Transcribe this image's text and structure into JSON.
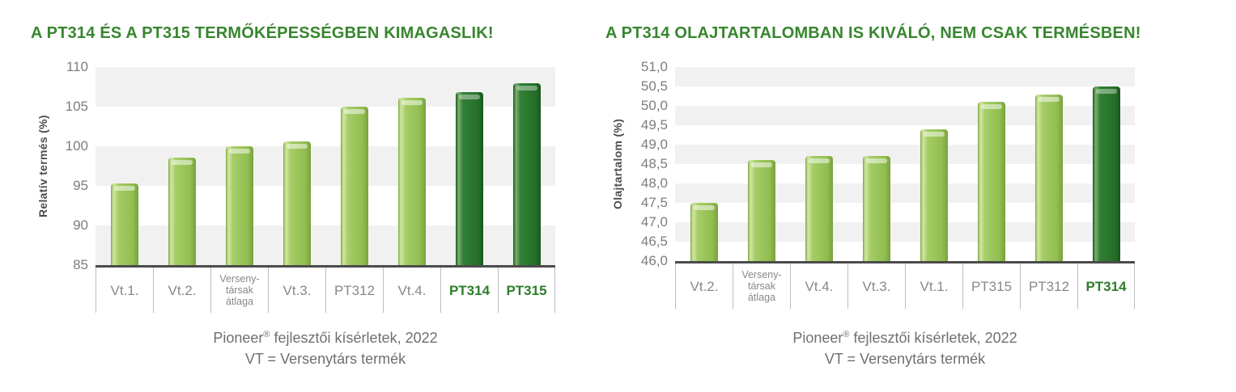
{
  "page": {
    "background": "#ffffff"
  },
  "colors": {
    "title_green": "#37862e",
    "bar_light_green": "#9ac55a",
    "bar_dark_green": "#2b772f",
    "highlight_label_green": "#2f7d2a",
    "band_gray": "#f1f1f1",
    "axis_line": "#4b4b4b",
    "tick_text": "#7d7d7d",
    "category_text": "#888888",
    "caption_text": "#6f6f6f",
    "separator": "#bdbdbd",
    "y_title_text": "#4e4e4e"
  },
  "charts": [
    {
      "title": "A PT314 ÉS A PT315 TERMŐKÉPESSÉGBEN KIMAGASLIK!",
      "caption": {
        "brand": "Pioneer",
        "reg_mark": "®",
        "line1_rest": " fejlesztői kísérletek, 2022",
        "line2": "VT = Versenytárs termék"
      },
      "chart_data": {
        "type": "bar",
        "title": "A PT314 ÉS A PT315 TERMŐKÉPESSÉGBEN KIMAGASLIK!",
        "xlabel": "",
        "ylabel": "Relatív termés (%)",
        "ylim": [
          85,
          110
        ],
        "ytick_step": 5,
        "ytick_labels": [
          "110",
          "105",
          "100",
          "95",
          "90",
          "85"
        ],
        "grid": "horizontal-bands",
        "legend": "none",
        "categories": [
          "Vt.1.",
          "Vt.2.",
          "Versenytársak átlaga",
          "Vt.3.",
          "PT312",
          "Vt.4.",
          "PT314",
          "PT315"
        ],
        "category_lines": [
          [
            "Vt.1."
          ],
          [
            "Vt.2."
          ],
          [
            "Verseny-",
            "társak",
            "átlaga"
          ],
          [
            "Vt.3."
          ],
          [
            "PT312"
          ],
          [
            "Vt.4."
          ],
          [
            "PT314"
          ],
          [
            "PT315"
          ]
        ],
        "values": [
          95.3,
          98.6,
          100.0,
          100.6,
          105.0,
          106.1,
          106.8,
          108.0
        ],
        "highlighted": [
          false,
          false,
          false,
          false,
          false,
          false,
          true,
          true
        ]
      }
    },
    {
      "title": "A PT314 OLAJTARTALOMBAN IS KIVÁLÓ, NEM CSAK TERMÉSBEN!",
      "caption": {
        "brand": "Pioneer",
        "reg_mark": "®",
        "line1_rest": " fejlesztői kísérletek, 2022",
        "line2": "VT = Versenytárs termék"
      },
      "chart_data": {
        "type": "bar",
        "title": "A PT314 OLAJTARTALOMBAN IS KIVÁLÓ, NEM CSAK TERMÉSBEN!",
        "xlabel": "",
        "ylabel": "Olajtartalom (%)",
        "ylim": [
          46,
          51
        ],
        "ytick_step": 0.5,
        "ytick_labels": [
          "51,0",
          "50,5",
          "50,0",
          "49,5",
          "49,0",
          "48,5",
          "48,0",
          "47,5",
          "47,0",
          "46,5",
          "46,0"
        ],
        "grid": "horizontal-bands",
        "legend": "none",
        "categories": [
          "Vt.2.",
          "Versenytársak átlaga",
          "Vt.4.",
          "Vt.3.",
          "Vt.1.",
          "PT315",
          "PT312",
          "PT314"
        ],
        "category_lines": [
          [
            "Vt.2."
          ],
          [
            "Verseny-",
            "társak",
            "átlaga"
          ],
          [
            "Vt.4."
          ],
          [
            "Vt.3."
          ],
          [
            "Vt.1."
          ],
          [
            "PT315"
          ],
          [
            "PT312"
          ],
          [
            "PT314"
          ]
        ],
        "values": [
          47.5,
          48.6,
          48.7,
          48.7,
          49.4,
          50.1,
          50.3,
          50.5
        ],
        "highlighted": [
          false,
          false,
          false,
          false,
          false,
          false,
          false,
          true
        ]
      }
    }
  ]
}
